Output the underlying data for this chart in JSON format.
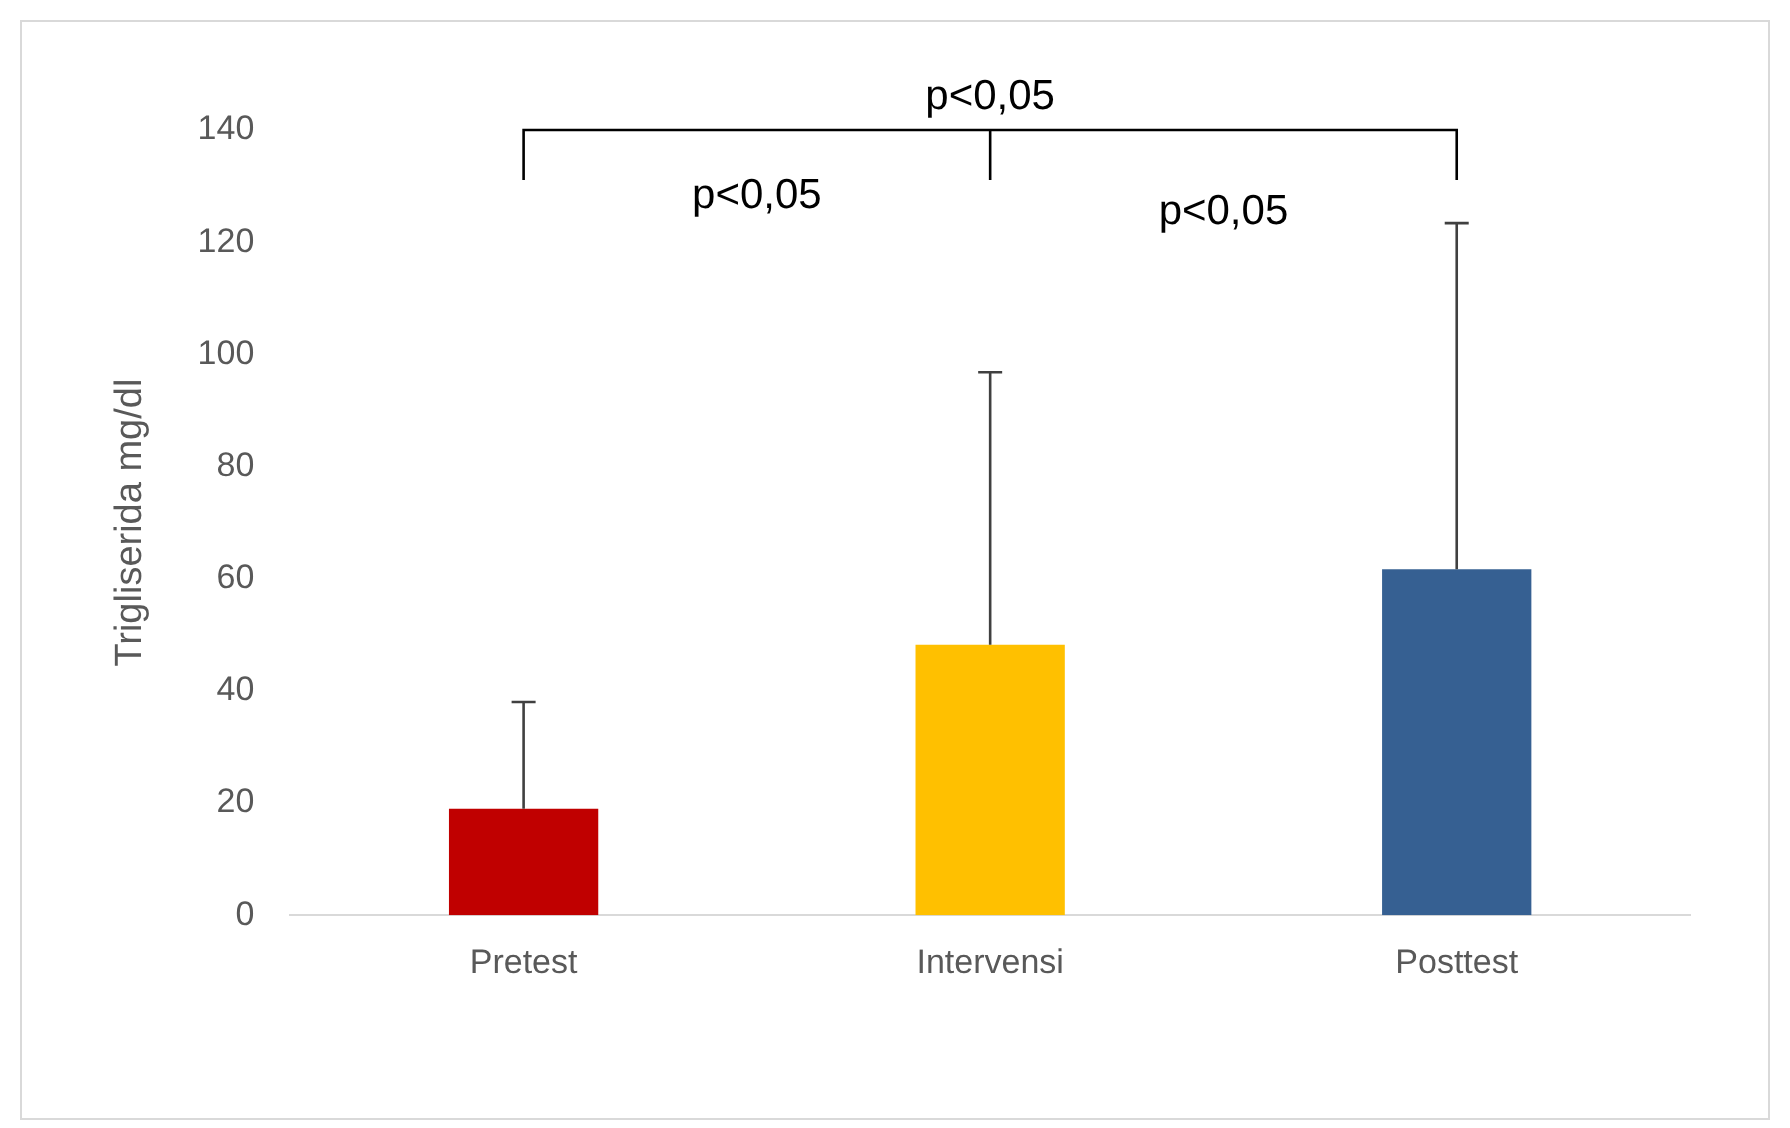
{
  "chart_data": {
    "type": "bar",
    "ylabel": "Trigliserida mg/dl",
    "categories": [
      "Pretest",
      "Intervensi",
      "Posttest"
    ],
    "values": [
      19,
      48.2,
      61.7
    ],
    "colors": [
      "#c00000",
      "#ffc000",
      "#366092"
    ],
    "errors": [
      [
        19,
        38
      ],
      [
        48.2,
        96.8
      ],
      [
        61.7,
        123.4
      ]
    ],
    "ylim": [
      0,
      140
    ],
    "yticks": [
      0,
      20,
      40,
      60,
      80,
      100,
      120,
      140
    ],
    "grid": false,
    "legend": false,
    "annotations": [
      "p<0,05",
      "p<0,05",
      "p<0,05"
    ]
  }
}
